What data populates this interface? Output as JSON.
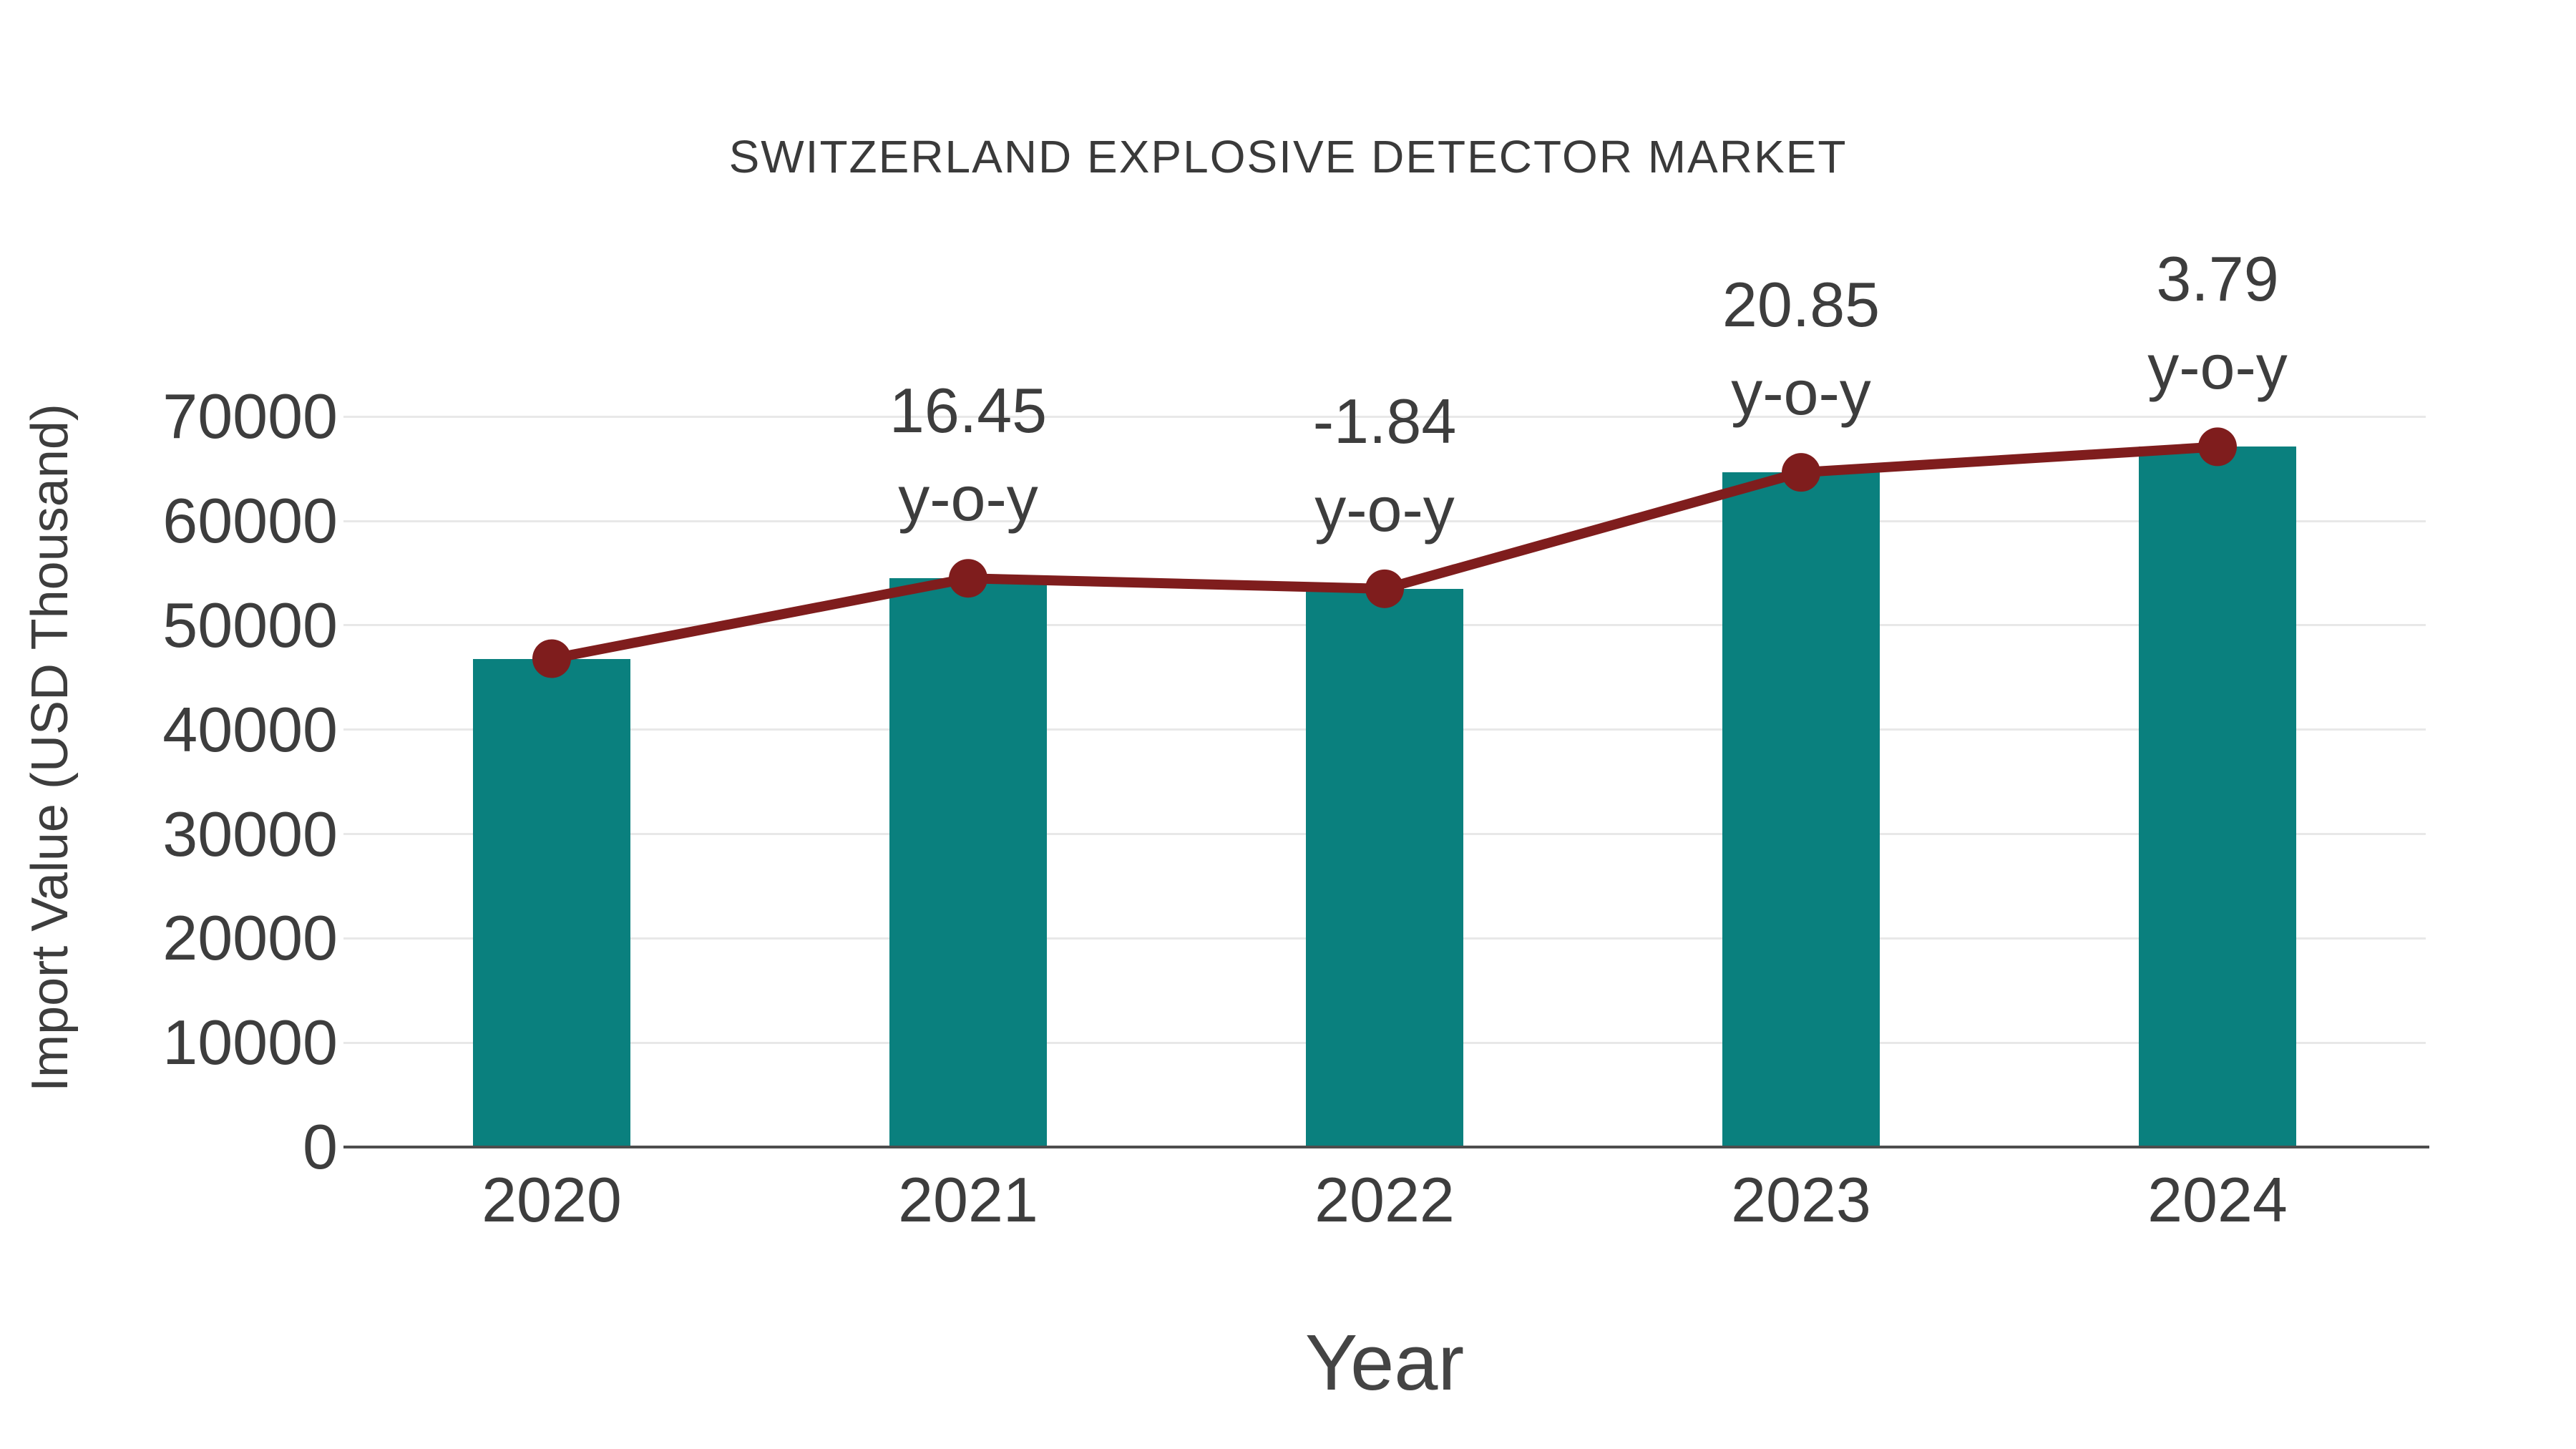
{
  "chart_data": {
    "type": "bar",
    "title": "SWITZERLAND EXPLOSIVE DETECTOR MARKET",
    "xlabel": "Year",
    "ylabel": "Import Value (USD Thousand)",
    "categories": [
      "2020",
      "2021",
      "2022",
      "2023",
      "2024"
    ],
    "series": [
      {
        "name": "import-value-bars",
        "type": "bar",
        "values": [
          46800,
          54500,
          53497,
          64652,
          67103
        ],
        "color": "#0a807e"
      },
      {
        "name": "import-value-trend-line",
        "type": "line",
        "values": [
          46800,
          54500,
          53497,
          64652,
          67103
        ],
        "color": "#7f1d1d"
      }
    ],
    "annotations": [
      {
        "category": "2021",
        "line1": "16.45",
        "line2": "y-o-y"
      },
      {
        "category": "2022",
        "line1": "-1.84",
        "line2": "y-o-y"
      },
      {
        "category": "2023",
        "line1": "20.85",
        "line2": "y-o-y"
      },
      {
        "category": "2024",
        "line1": "3.79",
        "line2": "y-o-y"
      }
    ],
    "y_ticks": [
      0,
      10000,
      20000,
      30000,
      40000,
      50000,
      60000,
      70000
    ],
    "ylim": [
      0,
      77000
    ],
    "grid": true,
    "legend_position": "none"
  },
  "colors": {
    "bar": "#0a807e",
    "line": "#7f1d1d",
    "marker": "#7f1d1d",
    "text": "#3d3d3d",
    "grid": "#e8e8e8",
    "axis": "#4d4d4d",
    "background": "#ffffff"
  }
}
